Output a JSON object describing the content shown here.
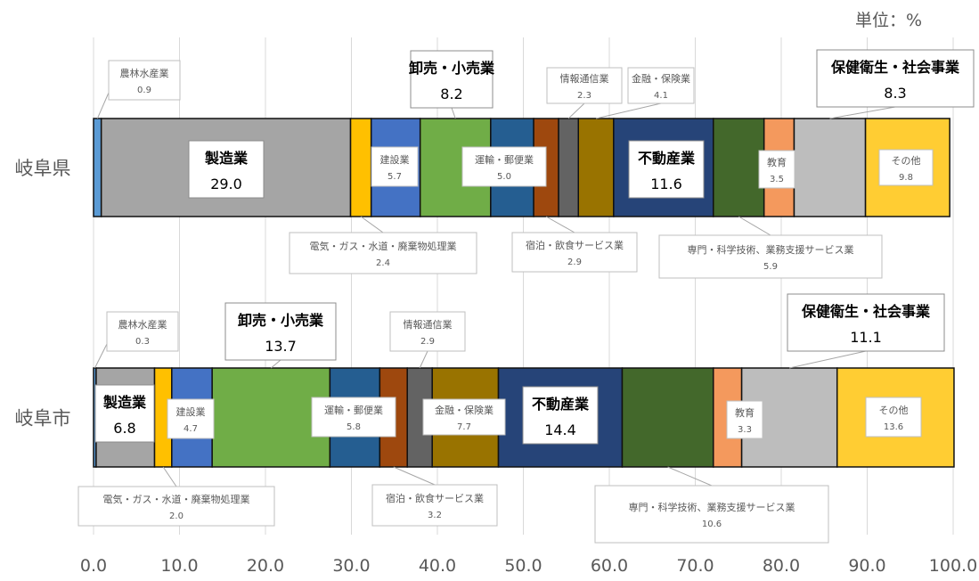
{
  "unit_label": "単位：%",
  "chart_data": {
    "type": "bar",
    "stacked": true,
    "orientation": "horizontal",
    "xlim": [
      0,
      100
    ],
    "x_ticks": [
      "0.0",
      "10.0",
      "20.0",
      "30.0",
      "40.0",
      "50.0",
      "60.0",
      "70.0",
      "80.0",
      "90.0",
      "100.0"
    ],
    "grid": "vertical",
    "categories": [
      "岐阜県",
      "岐阜市"
    ],
    "series": [
      {
        "name": "農林水産業",
        "color": "#5B9BD5",
        "values": [
          0.9,
          0.3
        ]
      },
      {
        "name": "製造業",
        "color": "#A5A5A5",
        "values": [
          29.0,
          6.8
        ]
      },
      {
        "name": "電気・ガス・水道・廃棄物処理業",
        "color": "#FFC000",
        "values": [
          2.4,
          2.0
        ]
      },
      {
        "name": "建設業",
        "color": "#4472C4",
        "values": [
          5.7,
          4.7
        ]
      },
      {
        "name": "卸売・小売業",
        "color": "#70AD47",
        "values": [
          8.2,
          13.7
        ]
      },
      {
        "name": "運輸・郵便業",
        "color": "#255E91",
        "values": [
          5.0,
          5.8
        ]
      },
      {
        "name": "宿泊・飲食サービス業",
        "color": "#9E480E",
        "values": [
          2.9,
          3.2
        ]
      },
      {
        "name": "情報通信業",
        "color": "#636363",
        "values": [
          2.3,
          2.9
        ]
      },
      {
        "name": "金融・保険業",
        "color": "#997300",
        "values": [
          4.1,
          7.7
        ]
      },
      {
        "name": "不動産業",
        "color": "#264478",
        "values": [
          11.6,
          14.4
        ]
      },
      {
        "name": "専門・科学技術、業務支援サービス業",
        "color": "#43682B",
        "values": [
          5.9,
          10.6
        ]
      },
      {
        "name": "教育",
        "color": "#F4995D",
        "values": [
          3.5,
          3.3
        ]
      },
      {
        "name": "保健衛生・社会事業",
        "color": "#BDBDBD",
        "values": [
          8.3,
          11.1
        ]
      },
      {
        "name": "その他",
        "color": "#FFCD33",
        "values": [
          9.8,
          13.6
        ]
      }
    ]
  }
}
